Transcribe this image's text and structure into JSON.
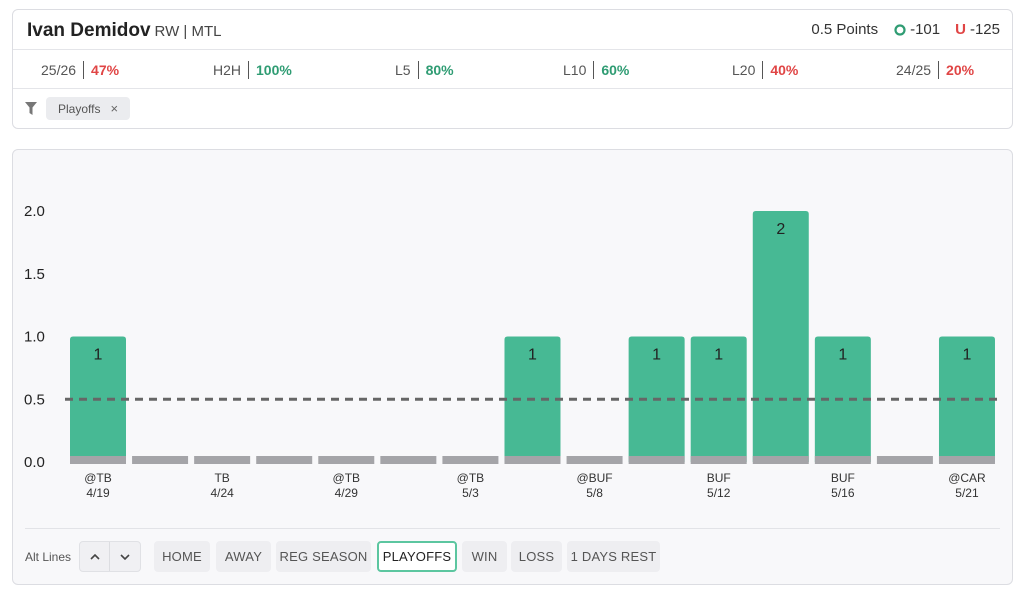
{
  "player": {
    "name": "Ivan Demidov",
    "position_team": "RW | MTL"
  },
  "market": {
    "line_label": "0.5 Points",
    "over_letter": "O",
    "over_odds": "-101",
    "under_letter": "U",
    "under_odds": "-125"
  },
  "stats": [
    {
      "label": "25/26",
      "value": "47%",
      "tone": "bad"
    },
    {
      "label": "H2H",
      "value": "100%",
      "tone": "good"
    },
    {
      "label": "L5",
      "value": "80%",
      "tone": "good"
    },
    {
      "label": "L10",
      "value": "60%",
      "tone": "good"
    },
    {
      "label": "L20",
      "value": "40%",
      "tone": "bad"
    },
    {
      "label": "24/25",
      "value": "20%",
      "tone": "bad"
    }
  ],
  "filter": {
    "icon": "filter-icon",
    "chip_label": "Playoffs",
    "chip_close": "×"
  },
  "colors": {
    "bar_hit": "#47b994",
    "bar_base": "#a4a4a8",
    "line": "#666666",
    "good": "#2f9c73",
    "bad": "#e04545"
  },
  "chart_data": {
    "type": "bar",
    "threshold": 0.5,
    "ylim": [
      0,
      2.0
    ],
    "yticks": [
      "0.0",
      "0.5",
      "1.0",
      "1.5",
      "2.0"
    ],
    "categories": [
      {
        "opp": "@TB",
        "date": "4/19"
      },
      {
        "opp": "",
        "date": ""
      },
      {
        "opp": "TB",
        "date": "4/24"
      },
      {
        "opp": "",
        "date": ""
      },
      {
        "opp": "@TB",
        "date": "4/29"
      },
      {
        "opp": "",
        "date": ""
      },
      {
        "opp": "@TB",
        "date": "5/3"
      },
      {
        "opp": "",
        "date": ""
      },
      {
        "opp": "@BUF",
        "date": "5/8"
      },
      {
        "opp": "",
        "date": ""
      },
      {
        "opp": "BUF",
        "date": "5/12"
      },
      {
        "opp": "",
        "date": ""
      },
      {
        "opp": "BUF",
        "date": "5/16"
      },
      {
        "opp": "",
        "date": ""
      },
      {
        "opp": "@CAR",
        "date": "5/21"
      }
    ],
    "values": [
      1,
      0,
      0,
      0,
      0,
      0,
      0,
      1,
      0,
      1,
      1,
      2,
      1,
      0,
      1
    ],
    "bar_labels": [
      "1",
      "",
      "",
      "",
      "",
      "",
      "",
      "1",
      "",
      "1",
      "1",
      "2",
      "1",
      "",
      "1"
    ]
  },
  "controls": {
    "alt_lines_label": "Alt Lines",
    "up_glyph": "⌃",
    "down_glyph": "⌄",
    "buttons": [
      {
        "label": "HOME",
        "active": false
      },
      {
        "label": "AWAY",
        "active": false
      },
      {
        "label": "REG SEASON",
        "active": false
      },
      {
        "label": "PLAYOFFS",
        "active": true
      },
      {
        "label": "WIN",
        "active": false
      },
      {
        "label": "LOSS",
        "active": false
      },
      {
        "label": "1 DAYS REST",
        "active": false
      }
    ]
  }
}
